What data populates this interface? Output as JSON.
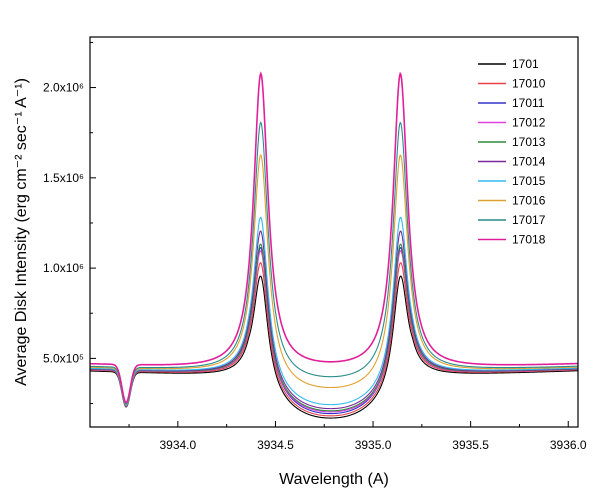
{
  "chart_data": {
    "type": "line",
    "title": "",
    "xlabel": "Wavelength (A)",
    "ylabel": "Average Disk Intensity (erg cm⁻² sec⁻¹ A⁻¹)",
    "xlim": [
      3933.55,
      3936.05
    ],
    "ylim": [
      120000,
      2280000
    ],
    "grid": false,
    "legend_position": "top-right",
    "x_ticks": [
      3934.0,
      3934.5,
      3935.0,
      3935.5,
      3936.0
    ],
    "x_tick_labels": [
      "3934.0",
      "3934.5",
      "3935.0",
      "3935.5",
      "3936.0"
    ],
    "y_ticks": [
      500000,
      1000000,
      1500000,
      2000000
    ],
    "y_tick_labels": [
      "5.0x10⁵",
      "1.0x10⁶",
      "1.5x10⁶",
      "2.0x10⁶"
    ],
    "series": [
      {
        "name": "1701",
        "color": "#000000",
        "peak": 800000,
        "base": 150000,
        "far": 430000
      },
      {
        "name": "17010",
        "color": "#e8404a",
        "peak": 880000,
        "base": 160000,
        "far": 435000
      },
      {
        "name": "17011",
        "color": "#3333cc",
        "peak": 970000,
        "base": 170000,
        "far": 440000
      },
      {
        "name": "17012",
        "color": "#e040e0",
        "peak": 960000,
        "base": 180000,
        "far": 438000
      },
      {
        "name": "17013",
        "color": "#2e8b3a",
        "peak": 1000000,
        "base": 185000,
        "far": 440000
      },
      {
        "name": "17014",
        "color": "#7a2a9a",
        "peak": 1080000,
        "base": 195000,
        "far": 442000
      },
      {
        "name": "17015",
        "color": "#33bbee",
        "peak": 1170000,
        "base": 215000,
        "far": 445000
      },
      {
        "name": "17016",
        "color": "#e0a030",
        "peak": 1580000,
        "base": 300000,
        "far": 450000
      },
      {
        "name": "17017",
        "color": "#2a8c8c",
        "peak": 1800000,
        "base": 355000,
        "far": 455000
      },
      {
        "name": "17018",
        "color": "#e0209a",
        "peak": 2120000,
        "base": 430000,
        "far": 470000
      }
    ]
  }
}
